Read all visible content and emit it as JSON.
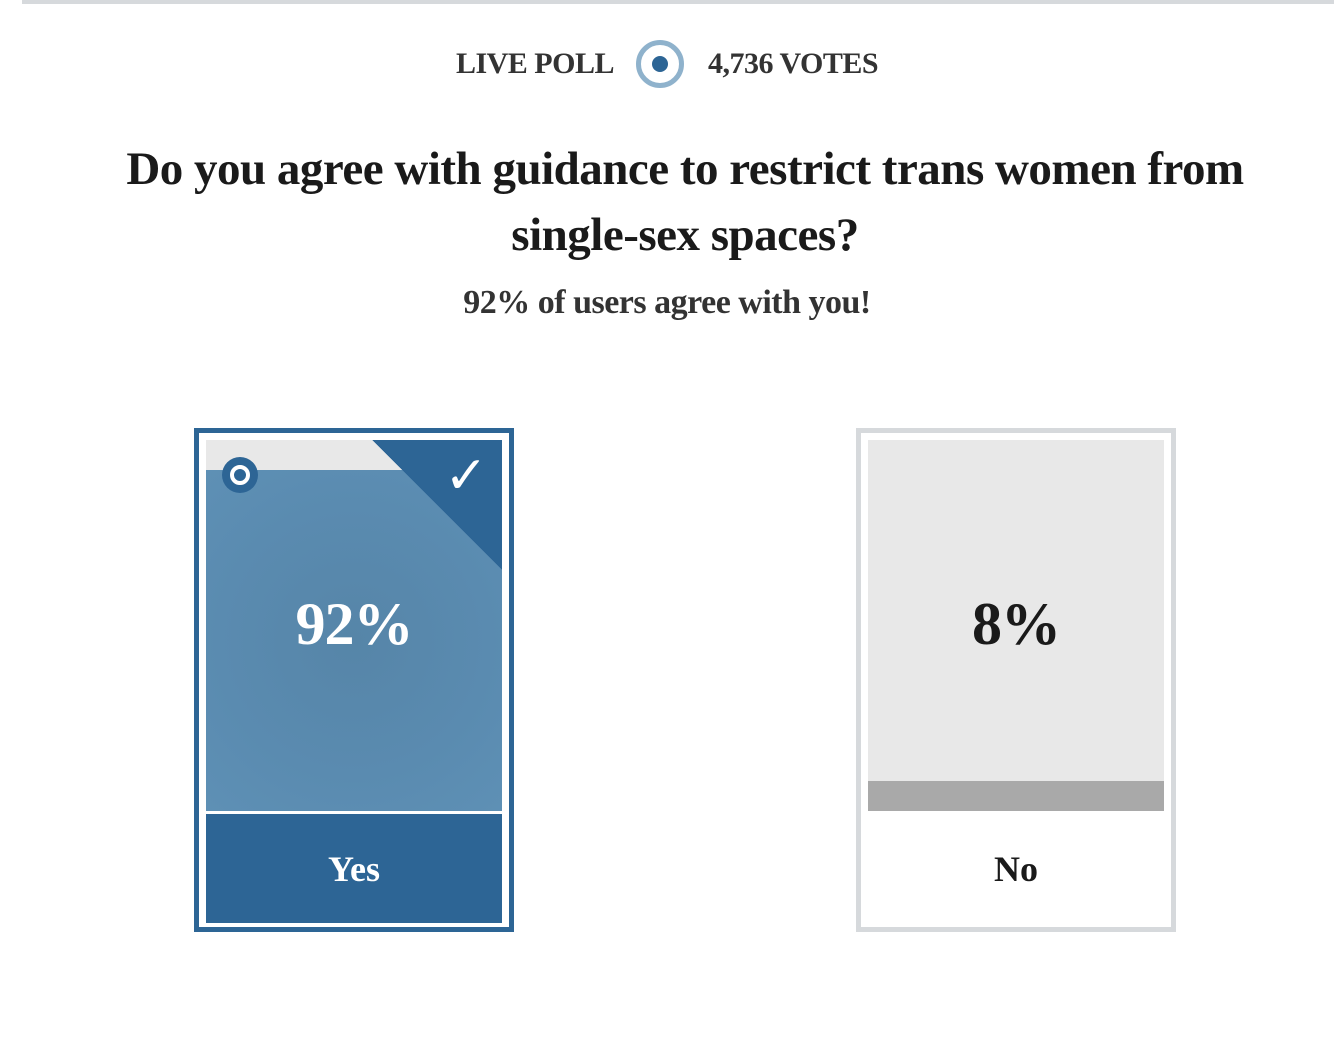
{
  "header": {
    "live_label": "LIVE POLL",
    "votes_label": "4,736 VOTES"
  },
  "question": "Do you agree with guidance to restrict trans women from single-sex spaces?",
  "result_message": "92% of users agree with you!",
  "colors": {
    "accent": "#2d6595",
    "accent_light": "#5a8bb0",
    "neutral_bar": "#a9a9a9",
    "card_bg": "#e8e8e8",
    "border_unselected": "#d6d9dc"
  },
  "options": [
    {
      "label": "Yes",
      "percent_text": "92%",
      "percent": 92,
      "selected": true,
      "icons": [
        "radio-selected-icon",
        "checkmark-icon"
      ]
    },
    {
      "label": "No",
      "percent_text": "8%",
      "percent": 8,
      "selected": false
    }
  ]
}
